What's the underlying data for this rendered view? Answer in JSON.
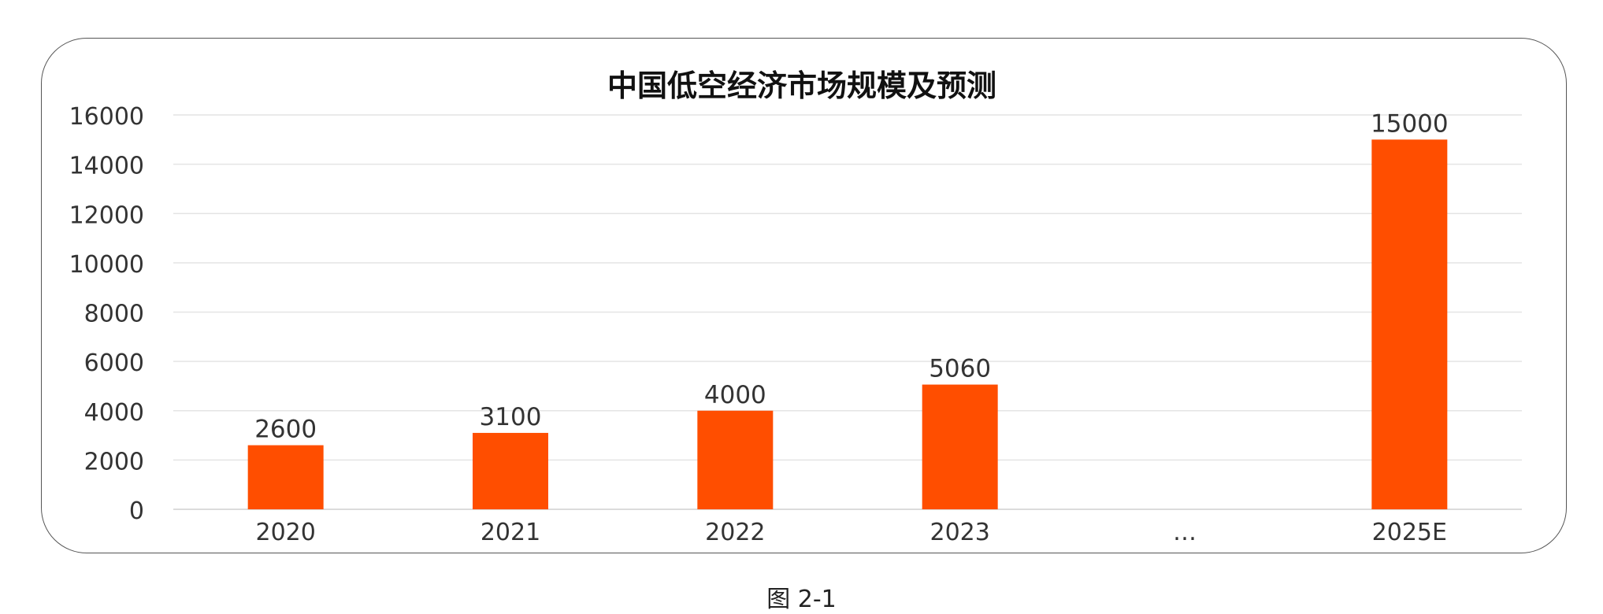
{
  "chart_data": {
    "type": "bar",
    "title": "中国低空经济市场规模及预测",
    "categories": [
      "2020",
      "2021",
      "2022",
      "2023",
      "…",
      "2025E"
    ],
    "values": [
      2600,
      3100,
      4000,
      5060,
      null,
      15000
    ],
    "data_labels": [
      "2600",
      "3100",
      "4000",
      "5060",
      "",
      "15000"
    ],
    "ylim": [
      0,
      16000
    ],
    "yticks": [
      0,
      2000,
      4000,
      6000,
      8000,
      10000,
      12000,
      14000,
      16000
    ],
    "xlabel": "",
    "ylabel": "",
    "grid": true,
    "legend": "none",
    "bar_color": "#FF4E00"
  },
  "caption": "图 2-1"
}
